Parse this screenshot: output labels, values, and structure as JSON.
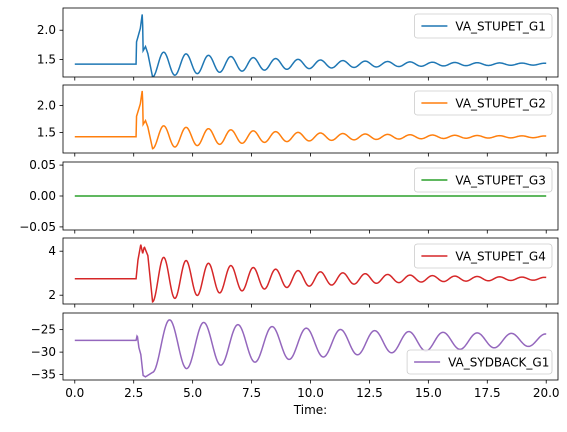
{
  "chart_data": [
    {
      "type": "line",
      "series": [
        {
          "name": "VA_STUPET_G1",
          "color": "#1f77b4",
          "profile": {
            "base": 1.42,
            "t0": 2.6,
            "step": [
              [
                2.6,
                1.42
              ],
              [
                2.62,
                1.8
              ],
              [
                2.78,
                2.03
              ],
              [
                2.87,
                2.3
              ],
              [
                2.9,
                1.65
              ],
              [
                3.0,
                1.72
              ],
              [
                3.1,
                1.6
              ]
            ],
            "osc": {
              "amp": 0.22,
              "decay": 0.16,
              "period": 0.95,
              "phase_t": 3.3,
              "mean_start": 1.42,
              "mean_end": 1.42
            }
          }
        }
      ],
      "ylim": [
        1.2,
        2.38
      ],
      "yticks": [
        1.5,
        2.0
      ],
      "ytick_labels": [
        "1.5",
        "2.0"
      ],
      "xlim": [
        -0.5,
        20.5
      ],
      "legend": "upper right"
    },
    {
      "type": "line",
      "series": [
        {
          "name": "VA_STUPET_G2",
          "color": "#ff7f0e",
          "profile": {
            "base": 1.42,
            "t0": 2.6,
            "step": [
              [
                2.6,
                1.42
              ],
              [
                2.62,
                1.8
              ],
              [
                2.78,
                2.03
              ],
              [
                2.87,
                2.3
              ],
              [
                2.9,
                1.65
              ],
              [
                3.0,
                1.72
              ],
              [
                3.1,
                1.6
              ]
            ],
            "osc": {
              "amp": 0.22,
              "decay": 0.16,
              "period": 0.95,
              "phase_t": 3.3,
              "mean_start": 1.42,
              "mean_end": 1.42
            }
          }
        }
      ],
      "ylim": [
        1.12,
        2.38
      ],
      "yticks": [
        1.5,
        2.0
      ],
      "ytick_labels": [
        "1.5",
        "2.0"
      ],
      "xlim": [
        -0.5,
        20.5
      ],
      "legend": "upper right"
    },
    {
      "type": "line",
      "series": [
        {
          "name": "VA_STUPET_G3",
          "color": "#2ca02c",
          "profile": {
            "base": 0.0,
            "t0": 99,
            "step": [],
            "osc": {
              "amp": 0,
              "decay": 0,
              "period": 1,
              "phase_t": 0,
              "mean_start": 0,
              "mean_end": 0
            }
          }
        }
      ],
      "ylim": [
        -0.055,
        0.055
      ],
      "yticks": [
        -0.05,
        0.0,
        0.05
      ],
      "ytick_labels": [
        "−0.05",
        "0.00",
        "0.05"
      ],
      "xlim": [
        -0.5,
        20.5
      ],
      "legend": "upper right"
    },
    {
      "type": "line",
      "series": [
        {
          "name": "VA_STUPET_G4",
          "color": "#d62728",
          "profile": {
            "base": 2.75,
            "t0": 2.6,
            "step": [
              [
                2.6,
                2.75
              ],
              [
                2.68,
                3.6
              ],
              [
                2.8,
                4.3
              ],
              [
                2.88,
                3.9
              ],
              [
                2.95,
                4.2
              ],
              [
                3.1,
                3.8
              ]
            ],
            "osc": {
              "amp": 1.05,
              "decay": 0.17,
              "period": 0.95,
              "phase_t": 3.3,
              "mean_start": 2.75,
              "mean_end": 2.75
            }
          }
        }
      ],
      "ylim": [
        1.6,
        4.6
      ],
      "yticks": [
        2,
        4
      ],
      "ytick_labels": [
        "2",
        "4"
      ],
      "xlim": [
        -0.5,
        20.5
      ],
      "legend": "upper right"
    },
    {
      "type": "line",
      "series": [
        {
          "name": "VA_SYDBACK_G1",
          "color": "#9467bd",
          "profile": {
            "base": -27.4,
            "t0": 2.6,
            "step": [
              [
                2.6,
                -27.4
              ],
              [
                2.65,
                -26.2
              ],
              [
                2.72,
                -29.0
              ],
              [
                2.8,
                -30.5
              ],
              [
                2.9,
                -35.2
              ],
              [
                3.0,
                -35.5
              ]
            ],
            "osc": {
              "amp": 6.0,
              "decay": 0.09,
              "period": 1.45,
              "phase_t": 3.3,
              "mean_start": -28.5,
              "mean_end": -27.3
            }
          }
        }
      ],
      "ylim": [
        -36.2,
        -21.3
      ],
      "yticks": [
        -35,
        -30,
        -25
      ],
      "ytick_labels": [
        "−35",
        "−30",
        "−25"
      ],
      "xlim": [
        -0.5,
        20.5
      ],
      "xticks": [
        0.0,
        2.5,
        5.0,
        7.5,
        10.0,
        12.5,
        15.0,
        17.5,
        20.0
      ],
      "xtick_labels": [
        "0.0",
        "2.5",
        "5.0",
        "7.5",
        "10.0",
        "12.5",
        "15.0",
        "17.5",
        "20.0"
      ],
      "xlabel": "Time:",
      "legend": "lower right"
    }
  ]
}
